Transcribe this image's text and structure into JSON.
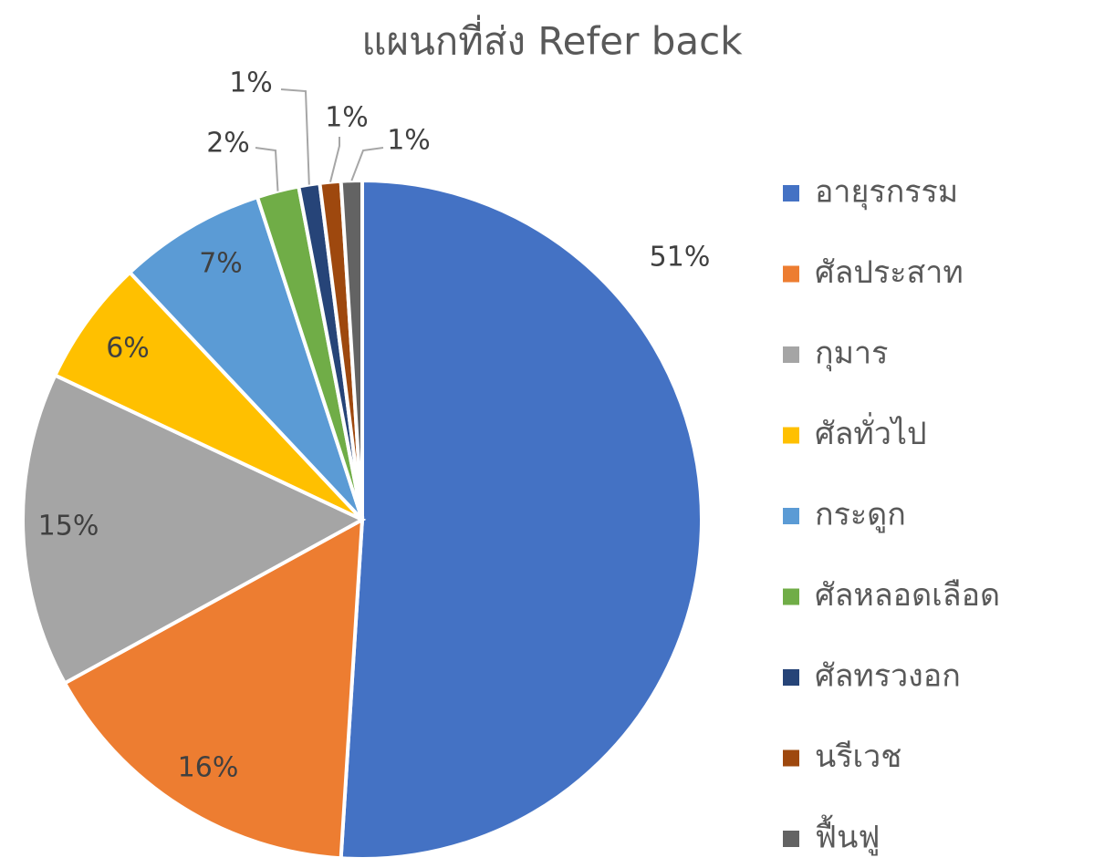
{
  "chart_data": {
    "type": "pie",
    "title": "แผนกที่ส่ง Refer back",
    "categories": [
      "อายุรกรรม",
      "ศัลประสาท",
      "กุมาร",
      "ศัลทั่วไป",
      "กระดูก",
      "ศัลหลอดเลือด",
      "ศัลทรวงอก",
      "นรีเวช",
      "ฟื้นฟู"
    ],
    "values": [
      51,
      16,
      15,
      6,
      7,
      2,
      1,
      1,
      1
    ],
    "value_labels": [
      "51%",
      "16%",
      "15%",
      "6%",
      "7%",
      "2%",
      "1%",
      "1%",
      "1%"
    ],
    "colors": [
      "#4472c4",
      "#ed7d31",
      "#a5a5a5",
      "#ffc000",
      "#5b9bd5",
      "#70ad47",
      "#264478",
      "#9e480e",
      "#636363"
    ],
    "legend": "right"
  }
}
